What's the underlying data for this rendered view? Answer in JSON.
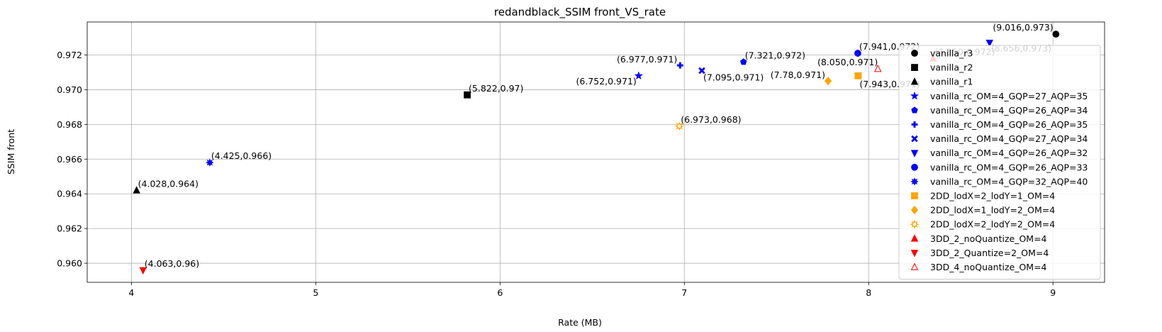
{
  "chart_data": {
    "type": "scatter",
    "title": "redandblack_SSIM front_VS_rate",
    "xlabel": "Rate (MB)",
    "ylabel": "SSIM front",
    "xlim": [
      3.76,
      9.28
    ],
    "ylim": [
      0.9589,
      0.9739
    ],
    "xticks": [
      4,
      5,
      6,
      7,
      8,
      9
    ],
    "yticks": [
      0.96,
      0.962,
      0.964,
      0.966,
      0.968,
      0.97,
      0.972
    ],
    "grid": true,
    "legend_position": "right",
    "series": [
      {
        "name": "vanilla_r3",
        "marker": "circle",
        "color": "#000000",
        "filled": true,
        "points": [
          {
            "x": 9.016,
            "y": 0.9732,
            "label": "(9.016,0.973)"
          }
        ]
      },
      {
        "name": "vanilla_r2",
        "marker": "square",
        "color": "#000000",
        "filled": true,
        "points": [
          {
            "x": 5.822,
            "y": 0.9697,
            "label": "(5.822,0.97)"
          }
        ]
      },
      {
        "name": "vanilla_r1",
        "marker": "triangle-up",
        "color": "#000000",
        "filled": true,
        "points": [
          {
            "x": 4.028,
            "y": 0.9642,
            "label": "(4.028,0.964)"
          }
        ]
      },
      {
        "name": "vanilla_rc_OM=4_GQP=27_AQP=35",
        "marker": "star",
        "color": "#0000ff",
        "filled": true,
        "points": [
          {
            "x": 6.752,
            "y": 0.9708,
            "label": "(6.752,0.971)"
          }
        ]
      },
      {
        "name": "vanilla_rc_OM=4_GQP=26_AQP=34",
        "marker": "pentagon",
        "color": "#0000ff",
        "filled": true,
        "points": [
          {
            "x": 7.321,
            "y": 0.9716,
            "label": "(7.321,0.972)"
          }
        ]
      },
      {
        "name": "vanilla_rc_OM=4_GQP=26_AQP=35",
        "marker": "plus",
        "color": "#0000ff",
        "filled": true,
        "points": [
          {
            "x": 6.977,
            "y": 0.9714,
            "label": "(6.977,0.971)"
          }
        ]
      },
      {
        "name": "vanilla_rc_OM=4_GQP=27_AQP=34",
        "marker": "x",
        "color": "#0000ff",
        "filled": true,
        "points": [
          {
            "x": 7.095,
            "y": 0.9711,
            "label": "(7.095,0.971)"
          }
        ]
      },
      {
        "name": "vanilla_rc_OM=4_GQP=26_AQP=32",
        "marker": "triangle-down",
        "color": "#0000ff",
        "filled": true,
        "points": [
          {
            "x": 8.656,
            "y": 0.9727,
            "label": "(8.656,0.973)"
          }
        ]
      },
      {
        "name": "vanilla_rc_OM=4_GQP=26_AQP=33",
        "marker": "circle",
        "color": "#0000ff",
        "filled": true,
        "points": [
          {
            "x": 7.941,
            "y": 0.9721,
            "label": "(7.941,0.972)"
          }
        ]
      },
      {
        "name": "vanilla_rc_OM=4_GQP=32_AQP=40",
        "marker": "asterisk",
        "color": "#0000ff",
        "filled": true,
        "points": [
          {
            "x": 4.425,
            "y": 0.9658,
            "label": "(4.425,0.966)"
          }
        ]
      },
      {
        "name": "2DD_lodX=2_lodY=1_OM=4",
        "marker": "square",
        "color": "#ffa500",
        "filled": true,
        "points": [
          {
            "x": 7.943,
            "y": 0.9708,
            "label": "(7.943,0.971)"
          }
        ]
      },
      {
        "name": "2DD_lodX=1_lodY=2_OM=4",
        "marker": "diamond",
        "color": "#ffa500",
        "filled": true,
        "points": [
          {
            "x": 7.78,
            "y": 0.9705,
            "label": "(7.78,0.971)"
          }
        ]
      },
      {
        "name": "2DD_lodX=2_lodY=2_OM=4",
        "marker": "asterisk-open",
        "color": "#ffa500",
        "filled": false,
        "points": [
          {
            "x": 6.973,
            "y": 0.9679,
            "label": "(6.973,0.968)"
          }
        ]
      },
      {
        "name": "3DD_2_noQuantize_OM=4",
        "marker": "triangle-up",
        "color": "#ff0000",
        "filled": true,
        "points": [
          {
            "x": 8.35,
            "y": 0.9718,
            "label": "(8.350,0.972)"
          }
        ]
      },
      {
        "name": "3DD_2_Quantize=2_OM=4",
        "marker": "triangle-down",
        "color": "#ff0000",
        "filled": true,
        "points": [
          {
            "x": 4.063,
            "y": 0.9596,
            "label": "(4.063,0.96)"
          }
        ]
      },
      {
        "name": "3DD_4_noQuantize_OM=4",
        "marker": "triangle-up",
        "color": "#ff0000",
        "filled": false,
        "points": [
          {
            "x": 8.05,
            "y": 0.9712,
            "label": "(8.050,0.971)"
          }
        ]
      }
    ]
  }
}
